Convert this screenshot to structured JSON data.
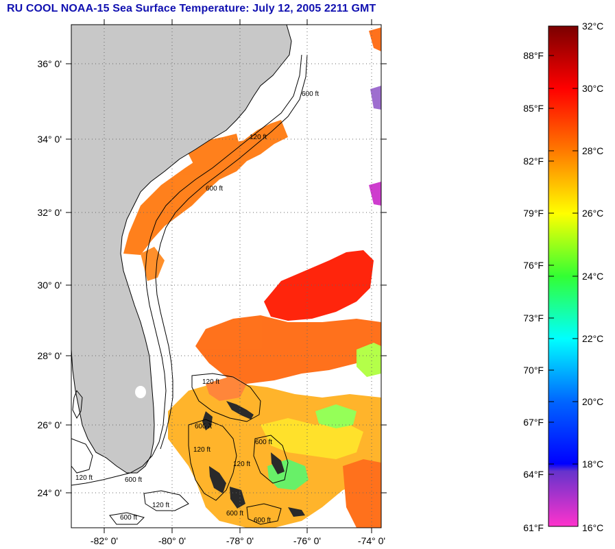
{
  "title": "RU COOL  NOAA-15  Sea Surface Temperature:  July 12, 2005 2211 GMT",
  "map": {
    "lat_labels": [
      "36° 0'",
      "34° 0'",
      "32° 0'",
      "30° 0'",
      "28° 0'",
      "26° 0'",
      "24° 0'"
    ],
    "lon_labels": [
      "-82° 0'",
      "-80° 0'",
      "-78° 0'",
      "-76° 0'",
      "-74° 0'"
    ],
    "contour_labels": [
      "120 ft",
      "600 ft"
    ]
  },
  "colorbar": {
    "celsius_labels": [
      "32°C",
      "30°C",
      "28°C",
      "26°C",
      "24°C",
      "22°C",
      "20°C",
      "18°C",
      "16°C"
    ],
    "fahrenheit_labels": [
      "88°F",
      "85°F",
      "82°F",
      "79°F",
      "76°F",
      "73°F",
      "70°F",
      "67°F",
      "64°F",
      "61°F"
    ],
    "colors": {
      "32": "#7a0000",
      "30": "#ff0000",
      "28": "#ff7a00",
      "26": "#ffff00",
      "24": "#33ff33",
      "22": "#00ffff",
      "20": "#0066ff",
      "18": "#0000ff",
      "17": "#6633cc",
      "16": "#ff33cc"
    }
  },
  "colors": {
    "land": "#c8c8c8",
    "title": "#1010b0"
  }
}
